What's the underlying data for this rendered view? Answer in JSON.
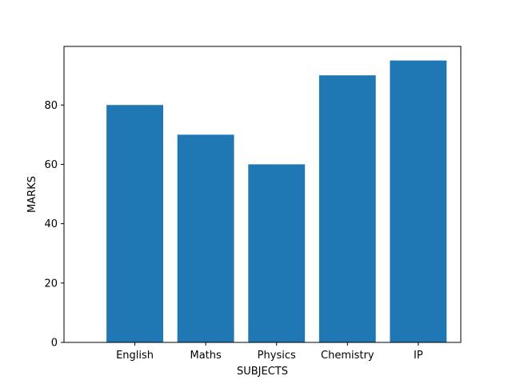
{
  "chart_data": {
    "type": "bar",
    "title": "",
    "categories": [
      "English",
      "Maths",
      "Physics",
      "Chemistry",
      "IP"
    ],
    "values": [
      80,
      70,
      60,
      90,
      95
    ],
    "xlabel": "SUBJECTS",
    "ylabel": "MARKS",
    "ylim": [
      0,
      99.75
    ],
    "yticks": [
      0,
      20,
      40,
      60,
      80
    ],
    "grid": false,
    "bar_color": "#1f77b4"
  }
}
